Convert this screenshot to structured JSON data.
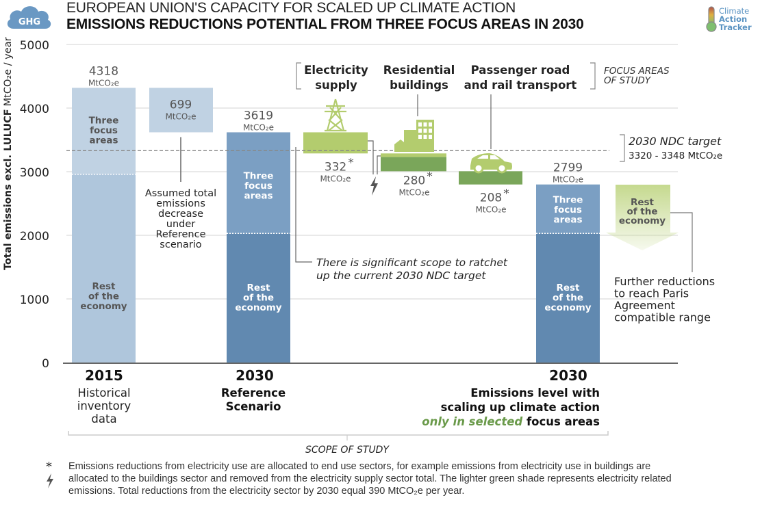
{
  "header": {
    "badge": "GHG",
    "title_line1": "EUROPEAN UNION'S CAPACITY FOR SCALED UP CLIMATE ACTION",
    "title_line2": "EMISSIONS REDUCTIONS POTENTIAL FROM THREE FOCUS AREAS IN 2030",
    "logo": [
      "Climate",
      "Action",
      "Tracker"
    ]
  },
  "colors": {
    "bar2015_top": "#c0d2e3",
    "bar2015_bottom": "#afc6dc",
    "bar_ref_top": "#7b9fc3",
    "bar_ref_bottom": "#6189b0",
    "green_light": "#b3cc6e",
    "green_dark": "#7aa65a",
    "arrow_green": "#c5d98e",
    "gray_text": "#555555",
    "accent_green_text": "#6a9a4a"
  },
  "chart_data": {
    "type": "bar",
    "title": "EMISSIONS REDUCTIONS POTENTIAL FROM THREE FOCUS AREAS IN 2030",
    "ylabel": "Total emissions excl. LULUCF MtCO2e / year",
    "ylabel_bold": "Total emissions excl. LULUCF",
    "ylabel_unit": "MtCO₂e / year",
    "ylim": [
      0,
      5000
    ],
    "yticks": [
      0,
      1000,
      2000,
      3000,
      4000,
      5000
    ],
    "unit": "MtCO₂e",
    "bars": [
      {
        "key": "b2015",
        "total": 4318,
        "label": "4318",
        "split": 2960,
        "top_label": "Three focus areas",
        "bottom_label": "Rest of the economy"
      },
      {
        "key": "decrease",
        "from": 4318,
        "to": 3619,
        "label": "699",
        "annotation": "Assumed total emissions decrease under Reference scenario"
      },
      {
        "key": "ref2030",
        "total": 3619,
        "label": "3619",
        "split": 2030,
        "top_label": "Three focus areas",
        "bottom_label": "Rest of the economy"
      },
      {
        "key": "electricity",
        "from": 3619,
        "to": 3287,
        "label": "332",
        "asterisk": true,
        "category": "Electricity supply"
      },
      {
        "key": "buildings",
        "from": 3287,
        "to": 3007,
        "light_portion_top": 3287,
        "light_portion_bottom": 3230,
        "label": "280",
        "asterisk": true,
        "category": "Residential buildings"
      },
      {
        "key": "transport",
        "from": 3007,
        "to": 2799,
        "label": "208",
        "asterisk": true,
        "category": "Passenger road and rail transport"
      },
      {
        "key": "scaled2030",
        "total": 2799,
        "label": "2799",
        "split": 2030,
        "top_label": "Three focus areas",
        "bottom_label": "Rest of the economy"
      }
    ],
    "ndc_target": {
      "low": 3320,
      "high": 3348,
      "label": "2030 NDC target",
      "range_text": "3320 - 3348"
    },
    "arrow": {
      "label": "Rest of the economy",
      "annotation": "Further reductions to reach Paris Agreement compatible range"
    },
    "focus_areas_label": "FOCUS AREAS OF STUDY",
    "ndc_annotation": "There is significant scope to ratchet up the current 2030 NDC target",
    "x_groups": [
      {
        "year": "2015",
        "desc": [
          "Historical",
          "inventory",
          "data"
        ],
        "desc_bold": false
      },
      {
        "year": "2030",
        "desc": [
          "Reference",
          "Scenario"
        ],
        "desc_bold": true
      },
      {
        "year": "2030",
        "desc": [
          "Emissions level with",
          "scaling up climate action"
        ],
        "desc_bold": true,
        "desc_green": "only in selected",
        "desc_tail": " focus areas"
      }
    ],
    "scope_label": "SCOPE OF STUDY"
  },
  "footnote": {
    "star": "*",
    "text": "Emissions reductions from electricity use are allocated to end use sectors, for example emissions from electricity use in buildings are allocated to the buildings sector and removed from the electricity supply sector total. The lighter green shade represents electricity related emissions. Total reductions from the electricity sector by 2030 equal 390 MtCO₂e per year."
  }
}
